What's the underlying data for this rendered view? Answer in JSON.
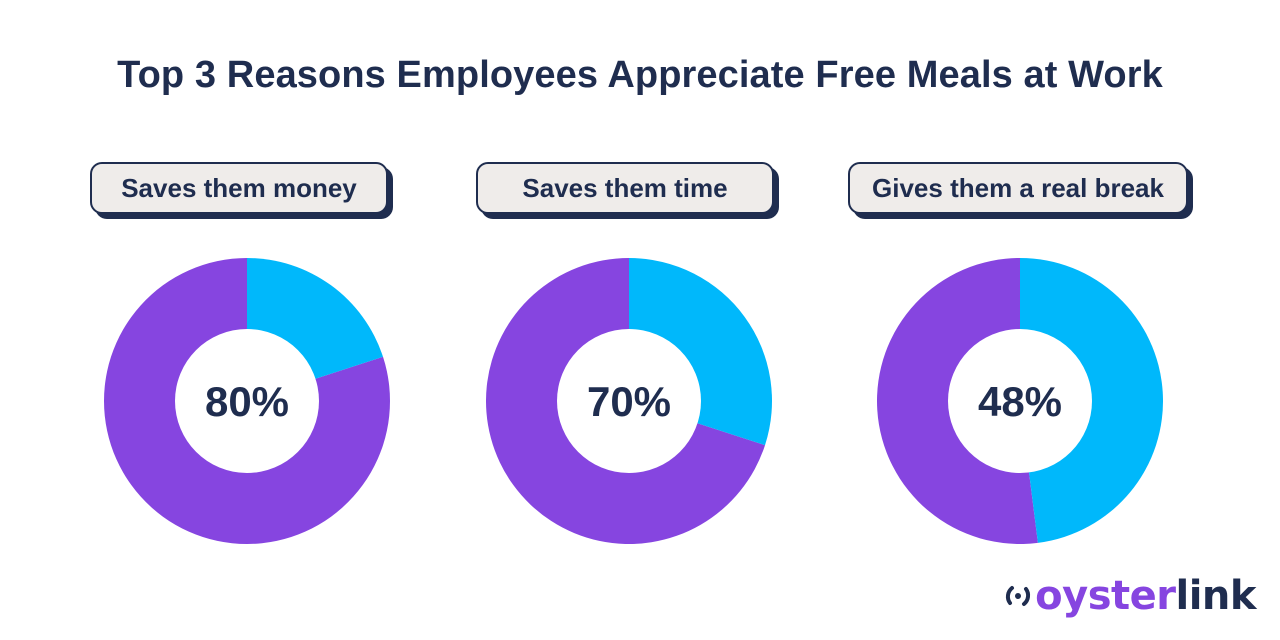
{
  "title": "Top 3 Reasons Employees Appreciate Free Meals at Work",
  "colors": {
    "primary": "#8645e0",
    "secondary": "#00b8fb",
    "text": "#1f2d4f",
    "pill_bg": "#efecea"
  },
  "brand": {
    "part1": "oyster",
    "part2": "link"
  },
  "chart_data": [
    {
      "type": "pie",
      "label": "Saves them money",
      "value": 80,
      "display": "80%",
      "slices": [
        {
          "value": 80,
          "color": "#8645e0"
        },
        {
          "value": 20,
          "color": "#00b8fb"
        }
      ]
    },
    {
      "type": "pie",
      "label": "Saves them time",
      "value": 70,
      "display": "70%",
      "slices": [
        {
          "value": 70,
          "color": "#8645e0"
        },
        {
          "value": 30,
          "color": "#00b8fb"
        }
      ]
    },
    {
      "type": "pie",
      "label": "Gives them a real break",
      "value": 48,
      "display": "48%",
      "slices": [
        {
          "value": 52,
          "color": "#8645e0"
        },
        {
          "value": 48,
          "color": "#00b8fb"
        }
      ]
    }
  ]
}
